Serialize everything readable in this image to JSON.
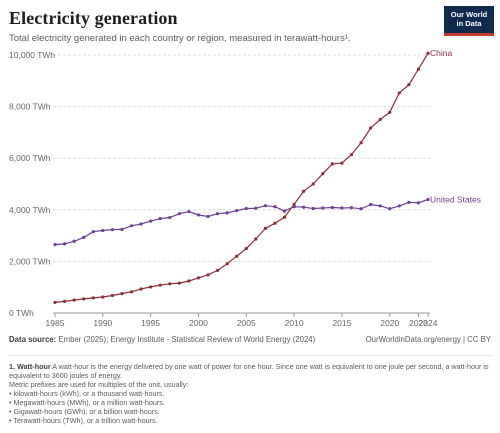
{
  "title": "Electricity generation",
  "subtitle": "Total electricity generated in each country or region, measured in terawatt-hours¹.",
  "logo": {
    "line1": "Our World",
    "line2": "in Data"
  },
  "source": {
    "label": "Data source:",
    "text": "Ember (2025); Energy Institute - Statistical Review of World Energy (2024)"
  },
  "credit": "OurWorldinData.org/energy | CC BY",
  "footnote": {
    "number": "1.",
    "heading": "Watt-hour",
    "text": "A watt-hour is the energy delivered by one watt of power for one hour. Since one watt is equivalent to one joule per second, a watt-hour is equivalent to 3600 joules of energy.",
    "prefix_intro": "Metric prefixes are used for multiples of the unit, usually:",
    "prefixes": [
      "• kilowatt-hours (kWh), or a thousand watt-hours.",
      "• Megawatt-hours (MWh), or a million watt-hours.",
      "• Gigawatt-hours (GWh), or a billion watt-hours.",
      "• Terawatt-hours (TWh), or a trillion watt-hours."
    ]
  },
  "chart_data": {
    "type": "line",
    "ylim": [
      0,
      10000
    ],
    "xlim": [
      1985,
      2024
    ],
    "y_ticks": [
      0,
      2000,
      4000,
      6000,
      8000,
      10000
    ],
    "y_tick_labels": [
      "0 TWh",
      "2,000 TWh",
      "4,000 TWh",
      "6,000 TWh",
      "8,000 TWh",
      "10,000 TWh"
    ],
    "x_ticks": [
      1985,
      1990,
      1995,
      2000,
      2005,
      2010,
      2015,
      2020,
      2024
    ],
    "x_tick_labels": [
      "1985",
      "1990",
      "1995",
      "2000",
      "2005",
      "2010",
      "2015",
      "2020",
      "2024"
    ],
    "x_extra_tick": {
      "value": 2023,
      "label": "2023"
    },
    "grid": "horizontal",
    "legend": "line-end labels",
    "x": [
      1985,
      1986,
      1987,
      1988,
      1989,
      1990,
      1991,
      1992,
      1993,
      1994,
      1995,
      1996,
      1997,
      1998,
      1999,
      2000,
      2001,
      2002,
      2003,
      2004,
      2005,
      2006,
      2007,
      2008,
      2009,
      2010,
      2011,
      2012,
      2013,
      2014,
      2015,
      2016,
      2017,
      2018,
      2019,
      2020,
      2021,
      2022,
      2023,
      2024
    ],
    "series": [
      {
        "name": "China",
        "color": "#883039",
        "values": [
          410,
          450,
          500,
          545,
          585,
          620,
          680,
          750,
          820,
          930,
          1010,
          1080,
          1130,
          1160,
          1240,
          1360,
          1480,
          1650,
          1910,
          2200,
          2500,
          2870,
          3280,
          3480,
          3710,
          4210,
          4720,
          5000,
          5400,
          5780,
          5810,
          6140,
          6600,
          7170,
          7500,
          7780,
          8530,
          8850,
          9450,
          10070
        ]
      },
      {
        "name": "United States",
        "color": "#6d3e91",
        "values": [
          2650,
          2680,
          2780,
          2930,
          3150,
          3200,
          3230,
          3240,
          3380,
          3450,
          3560,
          3660,
          3700,
          3850,
          3930,
          3800,
          3740,
          3850,
          3880,
          3970,
          4050,
          4060,
          4160,
          4120,
          3950,
          4120,
          4100,
          4050,
          4070,
          4090,
          4070,
          4080,
          4040,
          4200,
          4150,
          4040,
          4150,
          4290,
          4270,
          4400
        ]
      }
    ]
  }
}
